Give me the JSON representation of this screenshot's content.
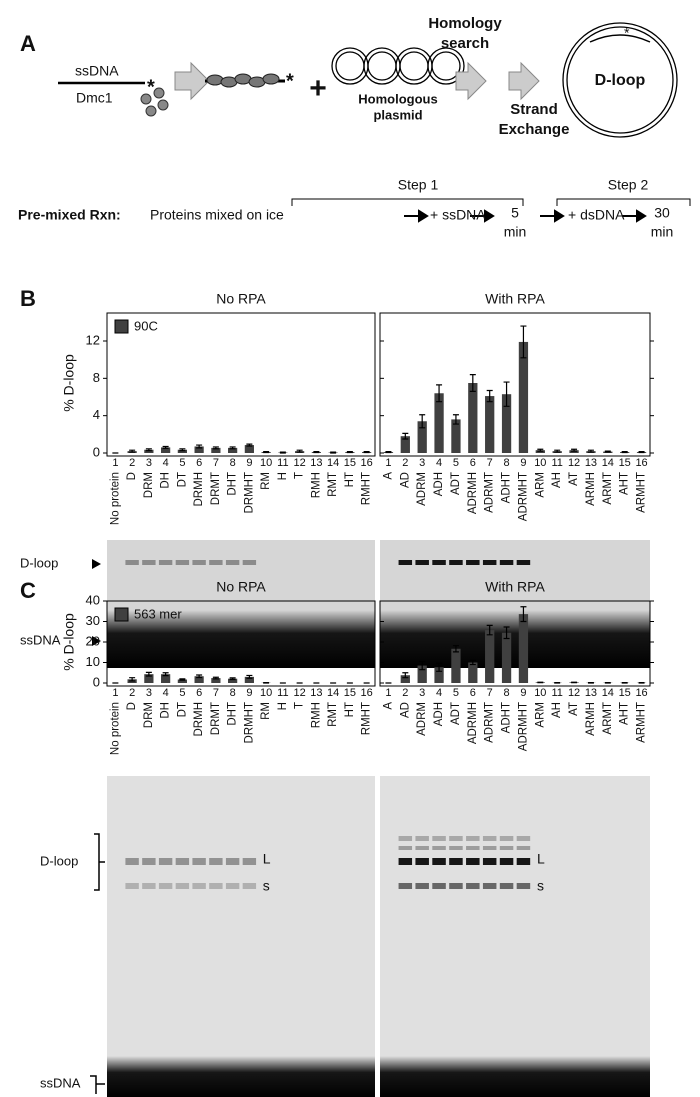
{
  "figure": {
    "panel_labels": [
      "A",
      "B",
      "C"
    ],
    "diagram": {
      "ssdna": "ssDNA",
      "dmc1": "Dmc1",
      "asterisk": "*",
      "plus": "+",
      "plasmid": [
        "Homologous",
        "plasmid"
      ],
      "search": [
        "Homology",
        "search"
      ],
      "exchange": [
        "Strand",
        "Exchange"
      ],
      "dloop": "D-loop"
    },
    "protocol": {
      "step1": "Step 1",
      "step2": "Step 2",
      "rxn": "Pre-mixed Rxn:",
      "mix": "Proteins mixed on ice",
      "ssdna": "+ ssDNA",
      "t1": [
        "5",
        "min"
      ],
      "dsdna": "+ dsDNA",
      "t2": [
        "30",
        "min"
      ]
    },
    "gels": {
      "dloop": "D-loop",
      "ssdna": "ssDNA",
      "band_l": "L",
      "band_s": "s"
    }
  },
  "chart_data": [
    {
      "type": "bar",
      "title": "No RPA",
      "ylabel": "% D-loop",
      "lane_numbers": [
        1,
        2,
        3,
        4,
        5,
        6,
        7,
        8,
        9,
        10,
        11,
        12,
        13,
        14,
        15,
        16
      ],
      "categories": [
        "No protein",
        "D",
        "DRM",
        "DH",
        "DT",
        "DRMH",
        "DRMT",
        "DHT",
        "DRMHT",
        "RM",
        "H",
        "T",
        "RMH",
        "RMT",
        "HT",
        "RMHT"
      ],
      "series": [
        {
          "name": "90C",
          "color": "#404040",
          "values": [
            0,
            0.2,
            0.35,
            0.6,
            0.35,
            0.7,
            0.55,
            0.55,
            0.85,
            0.1,
            0.05,
            0.2,
            0.1,
            0.05,
            0.1,
            0.1
          ],
          "errors": [
            0,
            0.1,
            0.1,
            0.1,
            0.1,
            0.15,
            0.1,
            0.1,
            0.1,
            0.05,
            0.05,
            0.1,
            0.05,
            0.05,
            0.05,
            0.05
          ]
        }
      ],
      "ylim": [
        0,
        15
      ],
      "yticks": [
        0,
        4,
        8,
        12
      ]
    },
    {
      "type": "bar",
      "title": "With RPA",
      "lane_numbers": [
        1,
        2,
        3,
        4,
        5,
        6,
        7,
        8,
        9,
        10,
        11,
        12,
        13,
        14,
        15,
        16
      ],
      "categories": [
        "A",
        "AD",
        "ADRM",
        "ADH",
        "ADT",
        "ADRMH",
        "ADRMT",
        "ADHT",
        "ADRMHT",
        "ARM",
        "AH",
        "AT",
        "ARMH",
        "ARMT",
        "AHT",
        "ARMHT"
      ],
      "series": [
        {
          "color": "#404040",
          "values": [
            0.1,
            1.8,
            3.4,
            6.4,
            3.6,
            7.5,
            6.1,
            6.3,
            11.9,
            0.3,
            0.2,
            0.3,
            0.2,
            0.15,
            0.1,
            0.1
          ],
          "errors": [
            0.05,
            0.3,
            0.7,
            0.9,
            0.5,
            0.9,
            0.6,
            1.3,
            1.7,
            0.1,
            0.1,
            0.1,
            0.1,
            0.05,
            0.05,
            0.05
          ]
        }
      ],
      "ylim": [
        0,
        15
      ],
      "yticks": [
        0,
        4,
        8,
        12
      ]
    },
    {
      "type": "bar",
      "title": "No RPA",
      "ylabel": "% D-loop",
      "lane_numbers": [
        1,
        2,
        3,
        4,
        5,
        6,
        7,
        8,
        9,
        10,
        11,
        12,
        13,
        14,
        15,
        16
      ],
      "categories": [
        "No protein",
        "D",
        "DRM",
        "DH",
        "DT",
        "DRMH",
        "DRMT",
        "DHT",
        "DRMHT",
        "RM",
        "H",
        "T",
        "RMH",
        "RMT",
        "HT",
        "RMHT"
      ],
      "series": [
        {
          "name": "563 mer",
          "color": "#404040",
          "values": [
            0,
            1.8,
            4.3,
            4.3,
            1.7,
            3.3,
            2.4,
            2.1,
            3.0,
            0.1,
            0,
            0,
            0,
            0,
            0,
            0
          ],
          "errors": [
            0,
            0.8,
            0.9,
            0.7,
            0.3,
            0.6,
            0.4,
            0.4,
            0.7,
            0.1,
            0,
            0,
            0,
            0,
            0,
            0
          ]
        }
      ],
      "ylim": [
        0,
        40
      ],
      "yticks": [
        0,
        10,
        20,
        30,
        40
      ]
    },
    {
      "type": "bar",
      "title": "With RPA",
      "lane_numbers": [
        1,
        2,
        3,
        4,
        5,
        6,
        7,
        8,
        9,
        10,
        11,
        12,
        13,
        14,
        15,
        16
      ],
      "categories": [
        "A",
        "AD",
        "ADRM",
        "ADH",
        "ADT",
        "ADRMH",
        "ADRMT",
        "ADHT",
        "ADRMHT",
        "ARM",
        "AH",
        "AT",
        "ARMH",
        "ARMT",
        "AHT",
        "ARMHT"
      ],
      "series": [
        {
          "color": "#404040",
          "values": [
            0,
            3.8,
            8.5,
            7.7,
            16.7,
            10.0,
            25.8,
            24.5,
            33.6,
            0.3,
            0.1,
            0.3,
            0.1,
            0.1,
            0.1,
            0.1
          ],
          "errors": [
            0,
            1.2,
            2.0,
            2.0,
            1.5,
            1.0,
            2.3,
            2.8,
            3.6,
            0.1,
            0.1,
            0.1,
            0.1,
            0.1,
            0.1,
            0.1
          ]
        }
      ],
      "ylim": [
        0,
        40
      ],
      "yticks": [
        0,
        10,
        20,
        30,
        40
      ]
    }
  ]
}
